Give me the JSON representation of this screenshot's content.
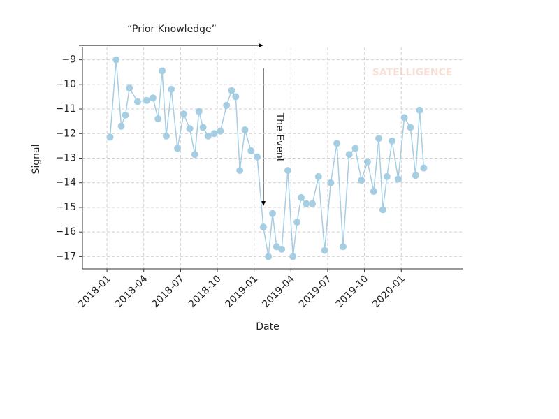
{
  "chart_data": {
    "type": "line",
    "title": "“Prior Knowledge”",
    "annotation": "The Event",
    "watermark": "SATELLIGENCE",
    "xlabel": "Date",
    "ylabel": "Signal",
    "color": "#a6cee3",
    "grid": true,
    "xlim": [
      "2017-11",
      "2020-06"
    ],
    "xticks": [
      "2018-01",
      "2018-04",
      "2018-07",
      "2018-10",
      "2019-01",
      "2019-04",
      "2019-07",
      "2019-10",
      "2020-01"
    ],
    "ylim": [
      -17.5,
      -8.5
    ],
    "yticks": [
      {
        "value": -9,
        "label": "−9"
      },
      {
        "value": -10,
        "label": "−10"
      },
      {
        "value": -11,
        "label": "−11"
      },
      {
        "value": -12,
        "label": "−12"
      },
      {
        "value": -13,
        "label": "−13"
      },
      {
        "value": -14,
        "label": "−14"
      },
      {
        "value": -15,
        "label": "−15"
      },
      {
        "value": -16,
        "label": "−16"
      },
      {
        "value": -17,
        "label": "−17"
      }
    ],
    "x": [
      "2018-01",
      "2018-01",
      "2018-02",
      "2018-02",
      "2018-02",
      "2018-03",
      "2018-04",
      "2018-04",
      "2018-05",
      "2018-05",
      "2018-05",
      "2018-06",
      "2018-06",
      "2018-07",
      "2018-07",
      "2018-08",
      "2018-08",
      "2018-08",
      "2018-09",
      "2018-09",
      "2018-10",
      "2018-10",
      "2018-11",
      "2018-11",
      "2018-11",
      "2018-12",
      "2018-12",
      "2019-01",
      "2019-01",
      "2019-02",
      "2019-02",
      "2019-02",
      "2019-03",
      "2019-03",
      "2019-04",
      "2019-04",
      "2019-04",
      "2019-05",
      "2019-05",
      "2019-06",
      "2019-06",
      "2019-07",
      "2019-07",
      "2019-08",
      "2019-08",
      "2019-09",
      "2019-09",
      "2019-10",
      "2019-10",
      "2019-11",
      "2019-11",
      "2019-11",
      "2019-12",
      "2019-12",
      "2020-01",
      "2020-01",
      "2020-02",
      "2020-02",
      "2020-02"
    ],
    "values": [
      -12.15,
      -9.0,
      -11.7,
      -11.25,
      -10.15,
      -10.7,
      -10.65,
      -10.55,
      -11.4,
      -9.45,
      -12.1,
      -10.2,
      -12.6,
      -11.2,
      -11.8,
      -12.85,
      -11.1,
      -11.75,
      -12.1,
      -12.0,
      -11.9,
      -10.85,
      -10.25,
      -10.5,
      -13.5,
      -11.85,
      -12.7,
      -12.95,
      -15.8,
      -17.0,
      -15.25,
      -16.6,
      -16.7,
      -13.5,
      -17.0,
      -15.6,
      -14.6,
      -14.85,
      -14.85,
      -13.75,
      -16.75,
      -14.0,
      -12.4,
      -16.6,
      -12.85,
      -12.6,
      -13.9,
      -13.15,
      -14.35,
      -12.2,
      -15.1,
      -13.75,
      -12.3,
      -13.85,
      -11.35,
      -11.75,
      -13.7,
      -11.05,
      -13.4
    ]
  }
}
